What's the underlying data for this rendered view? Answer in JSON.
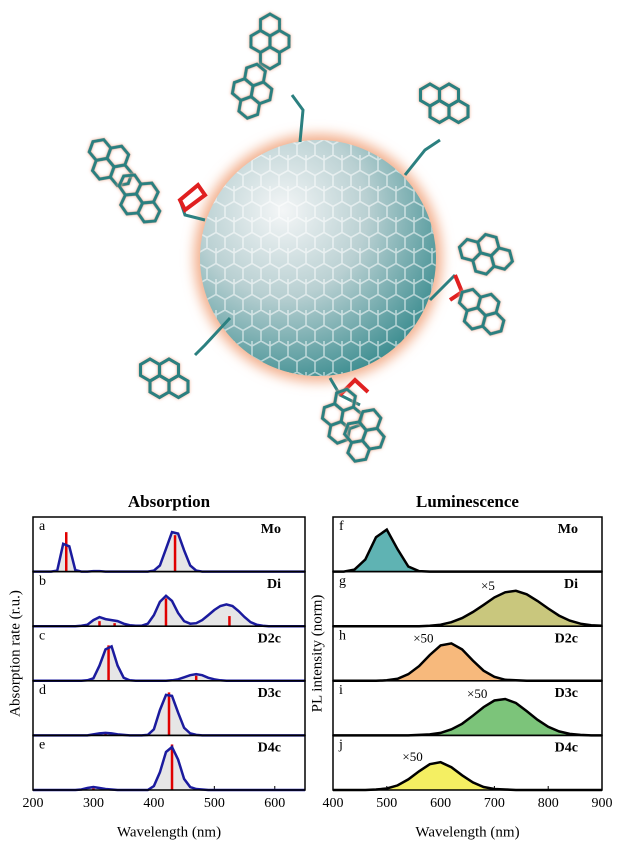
{
  "chart_data": [
    {
      "type": "line",
      "title": "Absorption",
      "xlabel": "Wavelength (nm)",
      "ylabel": "Absorption rate (r.u.)",
      "xlim": [
        200,
        650
      ],
      "xticks": [
        200,
        300,
        400,
        500,
        600
      ],
      "ylim": [
        0,
        1
      ],
      "line_color": "#1b1b9e",
      "fill_color": "#e6e6e6",
      "stick_color": "#e00000",
      "x": [
        200,
        210,
        220,
        230,
        240,
        250,
        260,
        270,
        280,
        290,
        300,
        310,
        320,
        330,
        340,
        350,
        360,
        370,
        380,
        390,
        400,
        410,
        420,
        430,
        440,
        450,
        460,
        470,
        480,
        490,
        500,
        510,
        520,
        530,
        540,
        550,
        560,
        570,
        580,
        590,
        600,
        610,
        620,
        630,
        640,
        650
      ],
      "panels": [
        {
          "letter": "a",
          "name": "Mo",
          "values": [
            0,
            0,
            0,
            0,
            0.02,
            0.55,
            0.5,
            0.03,
            0,
            0,
            0.01,
            0.01,
            0,
            0,
            0,
            0,
            0,
            0,
            0,
            0,
            0.02,
            0.12,
            0.45,
            0.78,
            0.75,
            0.42,
            0.12,
            0.02,
            0,
            0,
            0,
            0,
            0,
            0,
            0,
            0,
            0,
            0,
            0,
            0,
            0,
            0,
            0,
            0,
            0,
            0
          ],
          "sticks_x": [
            255,
            435
          ],
          "sticks_values": [
            0.78,
            0.72
          ]
        },
        {
          "letter": "b",
          "name": "Di",
          "values": [
            0,
            0,
            0,
            0,
            0,
            0,
            0,
            0,
            0.01,
            0.03,
            0.12,
            0.18,
            0.14,
            0.12,
            0.1,
            0.05,
            0.02,
            0.01,
            0.01,
            0.05,
            0.22,
            0.48,
            0.6,
            0.5,
            0.26,
            0.1,
            0.05,
            0.06,
            0.12,
            0.22,
            0.32,
            0.4,
            0.43,
            0.4,
            0.3,
            0.18,
            0.08,
            0.03,
            0.01,
            0,
            0,
            0,
            0,
            0,
            0,
            0
          ],
          "sticks_x": [
            310,
            335,
            420,
            525
          ],
          "sticks_values": [
            0.1,
            0.06,
            0.55,
            0.2
          ]
        },
        {
          "letter": "c",
          "name": "D2c",
          "values": [
            0,
            0,
            0,
            0,
            0,
            0,
            0,
            0,
            0,
            0.01,
            0.05,
            0.3,
            0.62,
            0.68,
            0.3,
            0.06,
            0.01,
            0,
            0,
            0,
            0,
            0,
            0,
            0.01,
            0.03,
            0.07,
            0.11,
            0.13,
            0.11,
            0.06,
            0.03,
            0.01,
            0,
            0,
            0,
            0,
            0,
            0,
            0,
            0,
            0,
            0,
            0,
            0,
            0,
            0
          ],
          "sticks_x": [
            325,
            470
          ],
          "sticks_values": [
            0.7,
            0.1
          ]
        },
        {
          "letter": "d",
          "name": "D3c",
          "values": [
            0,
            0,
            0,
            0,
            0,
            0,
            0,
            0,
            0,
            0,
            0.02,
            0.04,
            0.05,
            0.04,
            0.02,
            0.01,
            0,
            0,
            0,
            0.01,
            0.12,
            0.5,
            0.8,
            0.78,
            0.45,
            0.15,
            0.04,
            0.01,
            0,
            0,
            0,
            0,
            0,
            0,
            0,
            0,
            0,
            0,
            0,
            0,
            0,
            0,
            0,
            0,
            0,
            0
          ],
          "sticks_x": [
            320,
            425
          ],
          "sticks_values": [
            0.03,
            0.85
          ]
        },
        {
          "letter": "e",
          "name": "D4c",
          "values": [
            0,
            0,
            0,
            0,
            0,
            0,
            0,
            0,
            0.01,
            0.04,
            0.06,
            0.04,
            0.02,
            0.01,
            0,
            0,
            0,
            0,
            0,
            0,
            0.08,
            0.35,
            0.75,
            0.85,
            0.6,
            0.22,
            0.06,
            0.02,
            0.01,
            0,
            0,
            0,
            0,
            0,
            0,
            0,
            0,
            0,
            0,
            0,
            0,
            0,
            0,
            0,
            0,
            0
          ],
          "sticks_x": [
            300,
            430
          ],
          "sticks_values": [
            0.03,
            0.9
          ]
        }
      ]
    },
    {
      "type": "area",
      "title": "Luminescence",
      "xlabel": "Wavelength (nm)",
      "ylabel": "PL intensity (norm)",
      "xlim": [
        400,
        900
      ],
      "xticks": [
        400,
        500,
        600,
        700,
        800,
        900
      ],
      "ylim": [
        0,
        1
      ],
      "line_color": "#000000",
      "x": [
        400,
        420,
        440,
        460,
        480,
        500,
        520,
        540,
        560,
        580,
        600,
        620,
        640,
        660,
        680,
        700,
        720,
        740,
        760,
        780,
        800,
        820,
        840,
        860,
        880,
        900
      ],
      "panels": [
        {
          "letter": "f",
          "name": "Mo",
          "color": "#5fb3b3",
          "values": [
            0,
            0,
            0.04,
            0.24,
            0.68,
            0.83,
            0.44,
            0.1,
            0.01,
            0,
            0,
            0,
            0,
            0,
            0,
            0,
            0,
            0,
            0,
            0,
            0,
            0,
            0,
            0,
            0,
            0
          ]
        },
        {
          "letter": "g",
          "name": "Di",
          "color": "#c9c77d",
          "annotation": "×5",
          "values": [
            0,
            0,
            0,
            0,
            0,
            0,
            0,
            0,
            0,
            0.01,
            0.03,
            0.08,
            0.16,
            0.28,
            0.42,
            0.57,
            0.67,
            0.7,
            0.63,
            0.5,
            0.35,
            0.21,
            0.11,
            0.05,
            0.02,
            0.01
          ]
        },
        {
          "letter": "h",
          "name": "D2c",
          "color": "#f7b97c",
          "annotation": "×50",
          "values": [
            0,
            0,
            0,
            0,
            0,
            0.01,
            0.04,
            0.13,
            0.29,
            0.51,
            0.7,
            0.74,
            0.62,
            0.4,
            0.2,
            0.08,
            0.02,
            0.01,
            0,
            0,
            0,
            0,
            0,
            0,
            0,
            0
          ]
        },
        {
          "letter": "i",
          "name": "D3c",
          "color": "#7cc47a",
          "annotation": "×50",
          "values": [
            0,
            0,
            0,
            0,
            0,
            0,
            0,
            0,
            0.01,
            0.02,
            0.05,
            0.12,
            0.23,
            0.39,
            0.56,
            0.69,
            0.72,
            0.64,
            0.48,
            0.31,
            0.17,
            0.08,
            0.03,
            0.01,
            0,
            0
          ]
        },
        {
          "letter": "j",
          "name": "D4c",
          "color": "#f4ef62",
          "annotation": "×50",
          "values": [
            0,
            0,
            0,
            0,
            0.01,
            0.03,
            0.09,
            0.21,
            0.37,
            0.51,
            0.55,
            0.45,
            0.29,
            0.15,
            0.06,
            0.02,
            0.01,
            0,
            0,
            0,
            0,
            0,
            0,
            0,
            0,
            0
          ]
        }
      ]
    }
  ]
}
